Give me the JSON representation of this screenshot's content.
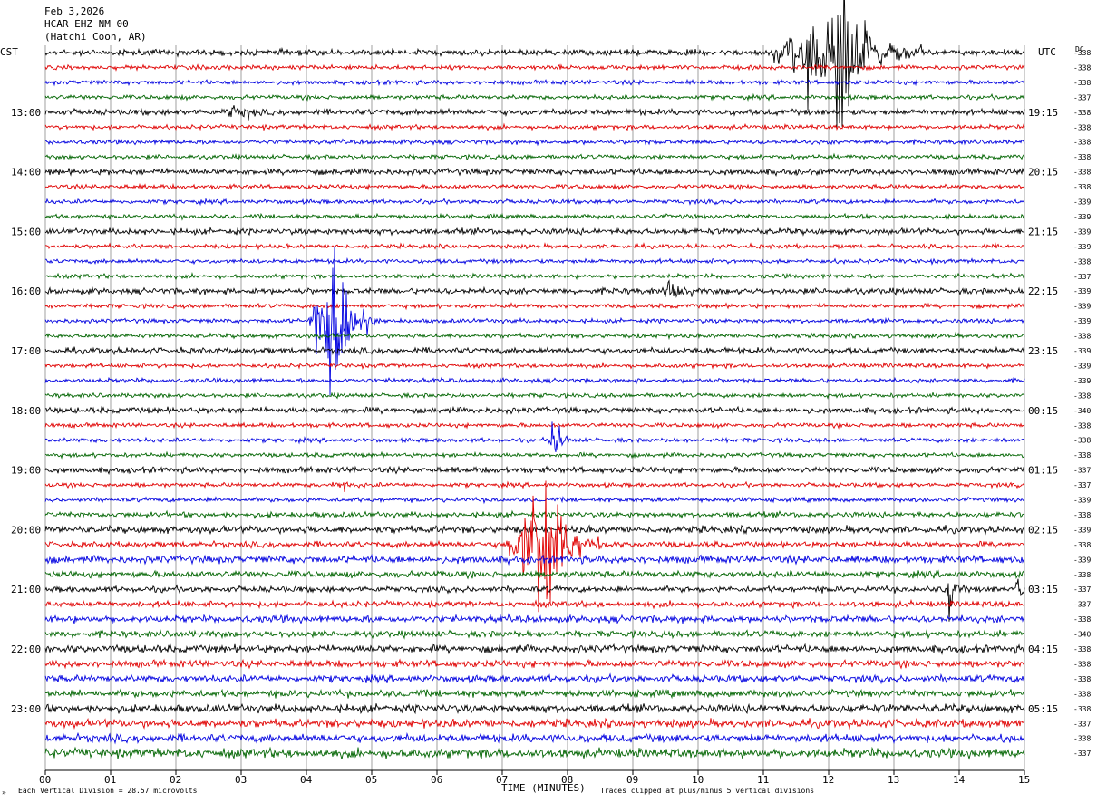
{
  "header": {
    "date": "Feb 3,2026",
    "station": "HCAR EHZ NM 00",
    "location": "(Hatchi Coon, AR)"
  },
  "left_tz": "CST",
  "right_tz": "UTC",
  "dc_label": "DC",
  "footer": {
    "scale_note": "Each Vertical Division =   28.57 microvolts",
    "xlabel": "TIME (MINUTES)",
    "clip_note": "Traces clipped at plus/minus 5 vertical divisions"
  },
  "chart_data": {
    "type": "line",
    "title": "",
    "xlabel": "TIME (MINUTES)",
    "xlim": [
      0,
      15
    ],
    "x_ticks": [
      "00",
      "01",
      "02",
      "03",
      "04",
      "05",
      "06",
      "07",
      "08",
      "09",
      "10",
      "11",
      "12",
      "13",
      "14",
      "15"
    ],
    "trace_minutes": 15,
    "trace_colors": [
      "#000000",
      "#e00000",
      "#0000e0",
      "#006400"
    ],
    "left_hour_labels": [
      {
        "trace": 4,
        "label": "13:00"
      },
      {
        "trace": 8,
        "label": "14:00"
      },
      {
        "trace": 12,
        "label": "15:00"
      },
      {
        "trace": 16,
        "label": "16:00"
      },
      {
        "trace": 20,
        "label": "17:00"
      },
      {
        "trace": 24,
        "label": "18:00"
      },
      {
        "trace": 28,
        "label": "19:00"
      },
      {
        "trace": 32,
        "label": "20:00"
      },
      {
        "trace": 36,
        "label": "21:00"
      },
      {
        "trace": 40,
        "label": "22:00"
      },
      {
        "trace": 44,
        "label": "23:00"
      }
    ],
    "right_hour_labels": [
      {
        "trace": 4,
        "label": "19:15"
      },
      {
        "trace": 8,
        "label": "20:15"
      },
      {
        "trace": 12,
        "label": "21:15"
      },
      {
        "trace": 16,
        "label": "22:15"
      },
      {
        "trace": 20,
        "label": "23:15"
      },
      {
        "trace": 24,
        "label": "00:15"
      },
      {
        "trace": 28,
        "label": "01:15"
      },
      {
        "trace": 32,
        "label": "02:15"
      },
      {
        "trace": 36,
        "label": "03:15"
      },
      {
        "trace": 40,
        "label": "04:15"
      },
      {
        "trace": 44,
        "label": "05:15"
      }
    ],
    "dc_offsets": [
      "-338",
      "-338",
      "-338",
      "-337",
      "-338",
      "-338",
      "-338",
      "-338",
      "-338",
      "-338",
      "-339",
      "-339",
      "-339",
      "-339",
      "-338",
      "-337",
      "-339",
      "-339",
      "-339",
      "-338",
      "-339",
      "-339",
      "-339",
      "-338",
      "-340",
      "-338",
      "-338",
      "-338",
      "-337",
      "-337",
      "-339",
      "-338",
      "-339",
      "-338",
      "-339",
      "-338",
      "-337",
      "-337",
      "-338",
      "-340",
      "-338",
      "-338",
      "-338",
      "-338",
      "-338",
      "-337",
      "-338",
      "-337"
    ],
    "noise_amplitude": [
      2.2,
      1.6,
      1.6,
      1.6,
      2.2,
      1.6,
      1.6,
      1.6,
      2.2,
      1.6,
      1.6,
      1.6,
      2.2,
      1.6,
      1.6,
      1.6,
      2.2,
      1.6,
      1.6,
      1.6,
      2.2,
      1.6,
      1.6,
      1.6,
      2.2,
      1.6,
      1.6,
      1.6,
      2.2,
      1.6,
      1.6,
      2.0,
      2.6,
      2.2,
      2.8,
      2.4,
      2.2,
      2.2,
      2.6,
      2.4,
      2.8,
      2.6,
      2.6,
      2.6,
      3.0,
      3.0,
      3.0,
      3.4
    ],
    "events": [
      {
        "trace": 0,
        "start_min": 11.0,
        "peak_min": 12.2,
        "end_min": 13.5,
        "amplitude": 50
      },
      {
        "trace": 4,
        "start_min": 2.7,
        "peak_min": 2.95,
        "end_min": 3.3,
        "amplitude": 4
      },
      {
        "trace": 16,
        "start_min": 9.45,
        "peak_min": 9.65,
        "end_min": 9.95,
        "amplitude": 5
      },
      {
        "trace": 18,
        "start_min": 4.0,
        "peak_min": 4.45,
        "end_min": 5.1,
        "amplitude": 80
      },
      {
        "trace": 26,
        "start_min": 7.65,
        "peak_min": 7.85,
        "end_min": 8.05,
        "amplitude": 14
      },
      {
        "trace": 29,
        "start_min": 4.4,
        "peak_min": 4.55,
        "end_min": 4.9,
        "amplitude": 4
      },
      {
        "trace": 33,
        "start_min": 7.0,
        "peak_min": 7.7,
        "end_min": 8.6,
        "amplitude": 55
      },
      {
        "trace": 36,
        "start_min": 13.75,
        "peak_min": 13.85,
        "end_min": 14.1,
        "amplitude": 18
      },
      {
        "trace": 36,
        "start_min": 14.8,
        "peak_min": 14.95,
        "end_min": 15.0,
        "amplitude": 12
      }
    ]
  }
}
